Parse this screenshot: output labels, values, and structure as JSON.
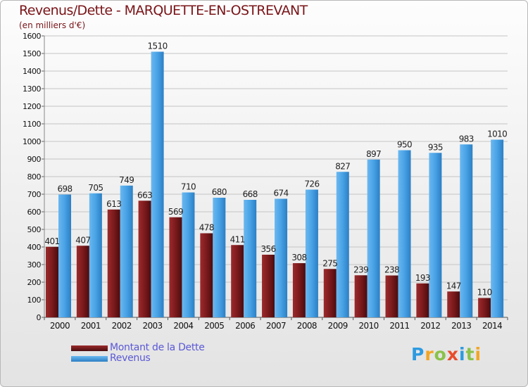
{
  "header": {
    "title": "Revenus/Dette - MARQUETTE-EN-OSTREVANT",
    "unit": "(en milliers d'€)"
  },
  "legend": {
    "debt_label": "Montant de la Dette",
    "revenue_label": "Revenus"
  },
  "logo": {
    "text": "Proxiti"
  },
  "colors": {
    "debt": "#7b1a1c",
    "revenue": "#48a2e5",
    "grid": "#c4c4c4",
    "axis_text": "#111111"
  },
  "chart_data": {
    "type": "bar",
    "title": "Revenus/Dette - MARQUETTE-EN-OSTREVANT",
    "ylabel": "(en milliers d'€)",
    "xlabel": "",
    "ylim": [
      0,
      1600
    ],
    "yticks": [
      0,
      100,
      200,
      300,
      400,
      500,
      600,
      700,
      800,
      900,
      1000,
      1100,
      1200,
      1300,
      1400,
      1500,
      1600
    ],
    "grid": true,
    "categories": [
      "2000",
      "2001",
      "2002",
      "2003",
      "2004",
      "2005",
      "2006",
      "2007",
      "2008",
      "2009",
      "2010",
      "2011",
      "2012",
      "2013",
      "2014"
    ],
    "series": [
      {
        "name": "Montant de la Dette",
        "values": [
          401,
          407,
          613,
          663,
          569,
          478,
          411,
          356,
          308,
          275,
          239,
          238,
          193,
          147,
          110
        ]
      },
      {
        "name": "Revenus",
        "values": [
          698,
          705,
          749,
          1510,
          710,
          680,
          668,
          674,
          726,
          827,
          897,
          950,
          935,
          983,
          1010
        ]
      }
    ]
  }
}
